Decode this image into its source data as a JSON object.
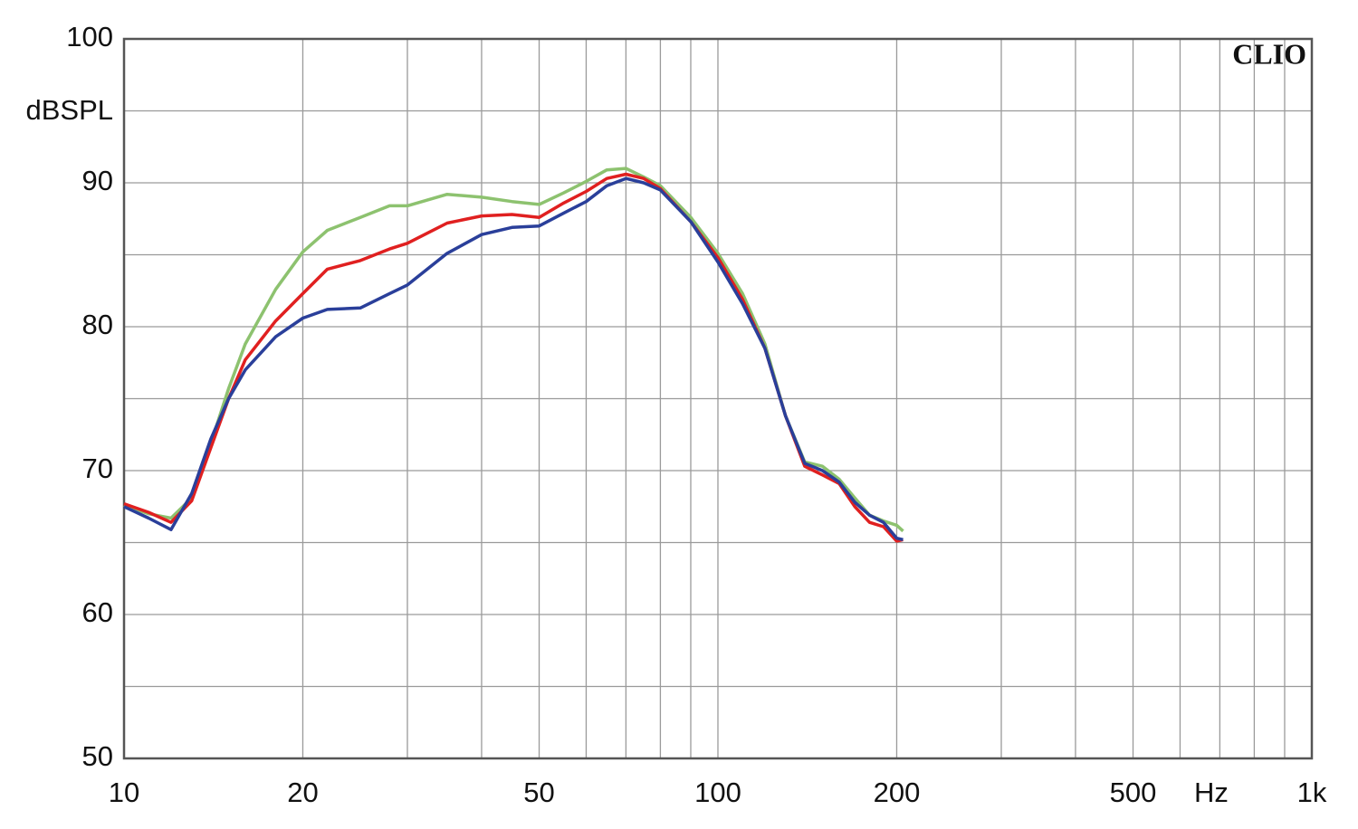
{
  "chart_data": {
    "type": "line",
    "ylabel": "dBSPL",
    "xlabel": "Hz",
    "annotation": "CLIO",
    "x": [
      10,
      11,
      12,
      13,
      14,
      15,
      16,
      18,
      20,
      22,
      25,
      28,
      30,
      35,
      40,
      45,
      50,
      55,
      60,
      65,
      70,
      75,
      80,
      90,
      100,
      110,
      120,
      130,
      140,
      150,
      160,
      170,
      180,
      190,
      200,
      205
    ],
    "series": [
      {
        "color": "#8dc26f",
        "values": [
          67.6,
          67.0,
          66.7,
          68.1,
          71.9,
          75.7,
          78.8,
          82.6,
          85.2,
          86.7,
          87.6,
          88.4,
          88.4,
          89.2,
          89.0,
          88.7,
          88.5,
          89.3,
          90.1,
          90.9,
          91.0,
          90.4,
          89.8,
          87.6,
          85.1,
          82.3,
          78.8,
          73.8,
          70.6,
          70.3,
          69.4,
          68.1,
          66.9,
          66.5,
          66.2,
          65.8
        ]
      },
      {
        "color": "#e02020",
        "values": [
          67.7,
          67.1,
          66.4,
          67.9,
          71.6,
          75.0,
          77.7,
          80.4,
          82.3,
          84.0,
          84.6,
          85.4,
          85.8,
          87.2,
          87.7,
          87.8,
          87.6,
          88.6,
          89.4,
          90.3,
          90.6,
          90.3,
          89.6,
          87.3,
          84.8,
          81.9,
          78.5,
          73.8,
          70.3,
          69.7,
          69.1,
          67.5,
          66.4,
          66.1,
          65.1,
          65.2
        ]
      },
      {
        "color": "#2a3f9a",
        "values": [
          67.5,
          66.7,
          65.9,
          68.4,
          72.2,
          75.0,
          77.0,
          79.3,
          80.6,
          81.2,
          81.3,
          82.3,
          82.9,
          85.1,
          86.4,
          86.9,
          87.0,
          87.9,
          88.7,
          89.8,
          90.3,
          90.0,
          89.5,
          87.3,
          84.5,
          81.6,
          78.5,
          73.8,
          70.5,
          70.0,
          69.2,
          67.8,
          66.9,
          66.4,
          65.3,
          65.2
        ]
      }
    ],
    "xscale": "log",
    "xlim": [
      10,
      1000
    ],
    "xticks": [
      10,
      20,
      50,
      100,
      200,
      500,
      {
        "value": 1000,
        "label": "1k"
      }
    ],
    "x_minor_ticks": [
      30,
      40,
      60,
      70,
      80,
      90,
      300,
      400,
      600,
      700,
      800,
      900
    ],
    "ylim": [
      50,
      100
    ],
    "yticks": [
      50,
      60,
      70,
      80,
      90,
      100
    ],
    "y_minor_ticks": [
      55,
      65,
      75,
      85,
      95
    ],
    "grid": true
  }
}
